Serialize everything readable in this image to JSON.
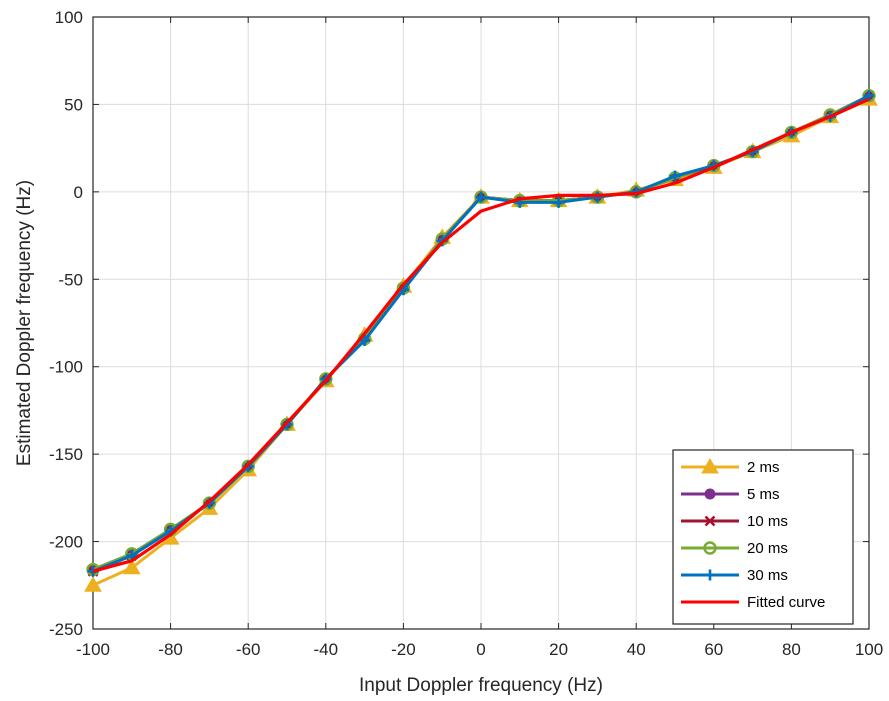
{
  "chart_data": {
    "type": "line",
    "title": "",
    "xlabel": "Input Doppler frequency (Hz)",
    "ylabel": "Estimated Doppler frequency (Hz)",
    "xlim": [
      -100,
      100
    ],
    "ylim": [
      -250,
      100
    ],
    "xticks": [
      "-100",
      "-80",
      "-60",
      "-40",
      "-20",
      "0",
      "20",
      "40",
      "60",
      "80",
      "100"
    ],
    "yticks": [
      "100",
      "50",
      "0",
      "-50",
      "-100",
      "-150",
      "-200",
      "-250"
    ],
    "grid": true,
    "legend_position": "bottom-right",
    "x": [
      -100,
      -90,
      -80,
      -70,
      -60,
      -50,
      -40,
      -30,
      -20,
      -10,
      0,
      10,
      20,
      30,
      40,
      50,
      60,
      70,
      80,
      90,
      100
    ],
    "series": [
      {
        "name": "2 ms",
        "color": "#EDB120",
        "marker": "triangle",
        "values": [
          -225,
          -215,
          -198,
          -181,
          -159,
          -133,
          -108,
          -82,
          -54,
          -26,
          -3,
          -5,
          -5,
          -3,
          1,
          7,
          14,
          23,
          32,
          43,
          53
        ]
      },
      {
        "name": "5 ms",
        "color": "#7E2F8E",
        "marker": "circle",
        "values": [
          -216,
          -207,
          -193,
          -178,
          -157,
          -133,
          -107,
          -84,
          -55,
          -27,
          -3,
          -5,
          -5,
          -3,
          0,
          8,
          15,
          23,
          34,
          44,
          55
        ]
      },
      {
        "name": "10 ms",
        "color": "#A2142F",
        "marker": "x",
        "values": [
          -217,
          -208,
          -193,
          -178,
          -157,
          -133,
          -107,
          -84,
          -55,
          -27,
          -3,
          -5,
          -5,
          -3,
          0,
          8,
          15,
          23,
          34,
          44,
          55
        ]
      },
      {
        "name": "20 ms",
        "color": "#77AC30",
        "marker": "open-circle",
        "values": [
          -216,
          -207,
          -193,
          -178,
          -157,
          -133,
          -107,
          -84,
          -55,
          -27,
          -3,
          -5,
          -5,
          -3,
          0,
          8,
          15,
          23,
          34,
          44,
          55
        ]
      },
      {
        "name": "30 ms",
        "color": "#0072BD",
        "marker": "plus",
        "values": [
          -217,
          -208,
          -194,
          -178,
          -157,
          -133,
          -107,
          -85,
          -56,
          -28,
          -3,
          -6,
          -6,
          -3,
          0,
          9,
          15,
          23,
          34,
          43,
          55
        ]
      },
      {
        "name": "Fitted curve",
        "color": "#FF0000",
        "marker": "none",
        "values": [
          -217,
          -211,
          -196,
          -177,
          -156,
          -132,
          -108,
          -81,
          -53,
          -29,
          -11,
          -4,
          -2,
          -2,
          -1,
          5,
          14,
          24,
          34,
          43,
          53
        ]
      }
    ]
  }
}
